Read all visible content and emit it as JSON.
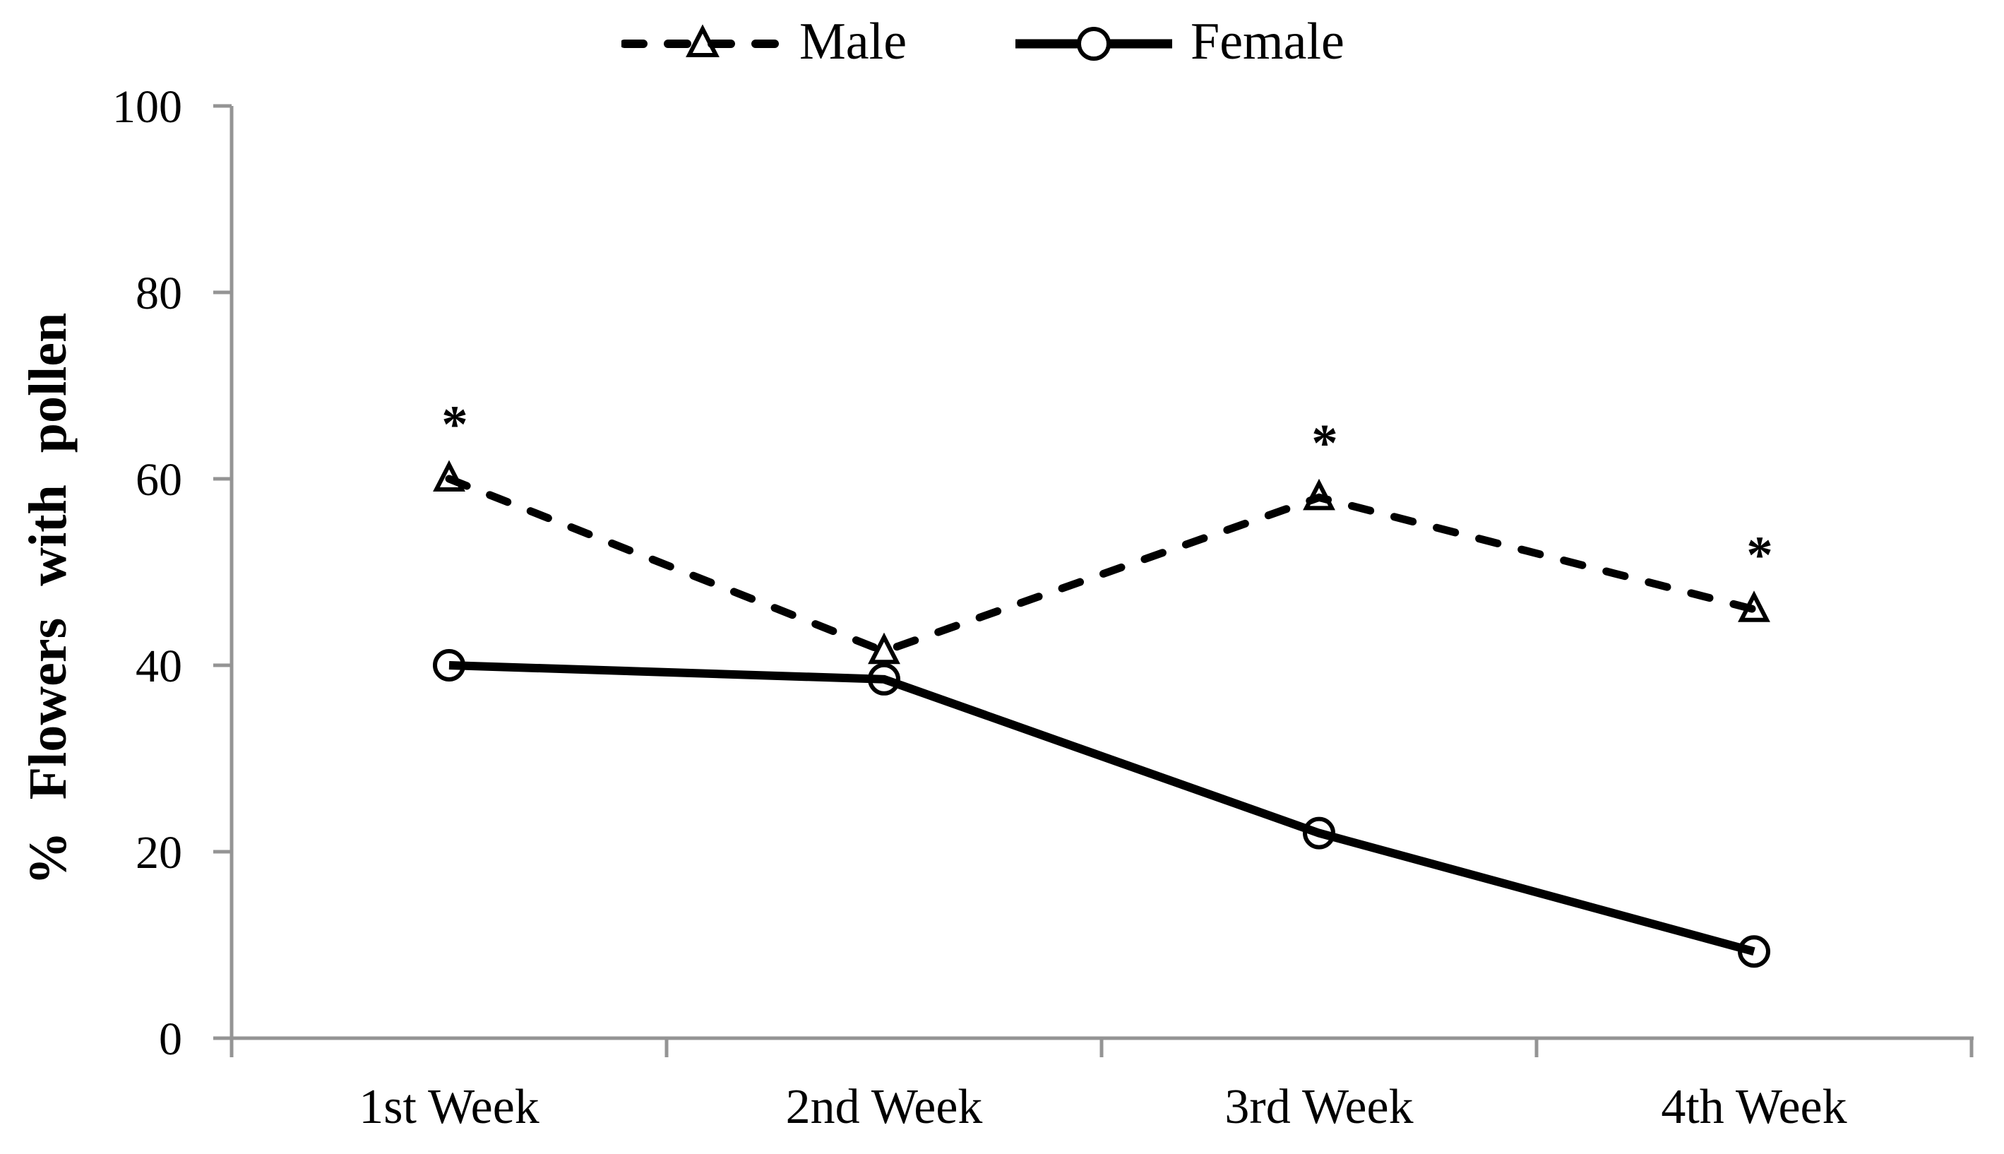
{
  "chart_data": {
    "type": "line",
    "title": "",
    "categories": [
      "1st Week",
      "2nd Week",
      "3rd Week",
      "4th Week"
    ],
    "series": [
      {
        "name": "Male",
        "values": [
          60,
          41.5,
          58,
          46
        ],
        "line_style": "dashed",
        "marker": "triangle",
        "color": "#000000",
        "significant": [
          true,
          false,
          true,
          true
        ]
      },
      {
        "name": "Female",
        "values": [
          40,
          38.5,
          22,
          9.3
        ],
        "line_style": "solid",
        "marker": "circle",
        "color": "#000000",
        "significant": [
          false,
          false,
          false,
          false
        ]
      }
    ],
    "xlabel": "",
    "ylabel": "% Flowers with pollen",
    "ylim": [
      0,
      100
    ],
    "yticks": [
      0,
      20,
      40,
      60,
      80,
      100
    ],
    "grid": false,
    "legend_position": "top-center",
    "annotations": {
      "significance_symbol": "*"
    }
  },
  "style": {
    "axis_color": "#949494",
    "text_color": "#000000",
    "marker_fill": "#ffffff"
  },
  "legend": {
    "male_label": "Male",
    "female_label": "Female"
  }
}
